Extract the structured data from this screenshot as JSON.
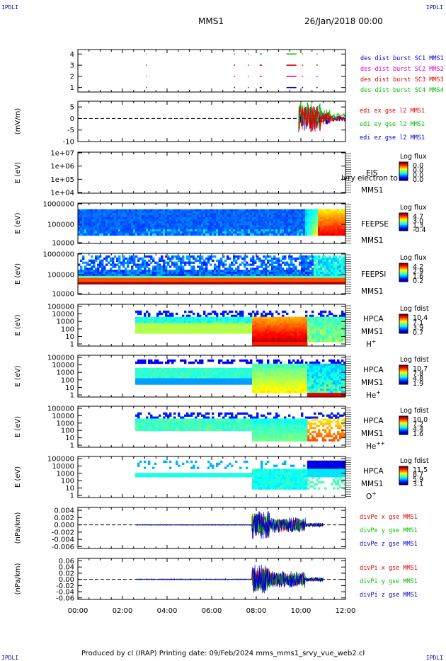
{
  "header": {
    "corner_tl": "IPDLI",
    "corner_tr": "IPDLI",
    "corner_bl": "IPDLI",
    "corner_br": "IPDLI",
    "spacecraft": "MMS1",
    "date_time": "26/Jan/2018 00:00"
  },
  "footer": {
    "text": "Produced by cl (IRAP)   Printing date: 09/Feb/2024   mms_mms1_srvy_vue_web2.cl"
  },
  "colors": {
    "c1": "#0000c8",
    "c2": "#e000e0",
    "c3": "#e00000",
    "c4": "#00c000",
    "ex": "#e00000",
    "ey": "#00c000",
    "ez": "#0000c8"
  },
  "chart_data": {
    "x_ticks": [
      "00:00",
      "02:00",
      "04:00",
      "06:00",
      "08:00",
      "10:00",
      "12:00"
    ],
    "x_range_hours": [
      0,
      12
    ],
    "panels": [
      {
        "id": "burst",
        "type": "scatter",
        "y_ticks": [
          "1",
          "2",
          "3",
          "4"
        ],
        "ylim": [
          0.6,
          4.4
        ],
        "legend": [
          {
            "text": "des dist burst SC1 MMS1",
            "color": "#0000c8"
          },
          {
            "text": "des dist burst SC2 MMS2",
            "color": "#e000e0"
          },
          {
            "text": "des dist burst SC3 MMS3",
            "color": "#e00000"
          },
          {
            "text": "des dist burst SC4 MMS4",
            "color": "#00c000"
          }
        ],
        "burst_intervals_hours": [
          [
            3.07,
            3.1
          ],
          [
            7.0,
            7.05
          ],
          [
            7.62,
            7.66
          ],
          [
            8.15,
            8.25
          ],
          [
            9.35,
            9.8
          ],
          [
            10.05,
            10.1
          ],
          [
            10.7,
            10.75
          ]
        ]
      },
      {
        "id": "edi",
        "type": "line",
        "ylabel": "(mV/m)",
        "y_ticks": [
          "5",
          "0",
          "-5",
          "-10"
        ],
        "ylim": [
          -10,
          7.5
        ],
        "legend": [
          {
            "text": "edi ex gse l2 MMS1",
            "color": "#e00000"
          },
          {
            "text": "edi ey gse l2 MMS1",
            "color": "#00c000"
          },
          {
            "text": "edi ez gse l2 MMS1",
            "color": "#0000c8"
          }
        ],
        "data_start_hours": 9.9
      },
      {
        "id": "eis",
        "type": "heatmap",
        "ylabel": "E (eV)",
        "y_ticks": [
          "1e+07",
          "1e+06",
          "1e+05",
          "1e+04"
        ],
        "labels": [
          "EIS",
          "MMS1"
        ],
        "overlay": "lvry electron to",
        "cb_title": "Log flux",
        "cb_ticks": [
          "0.0",
          "0.0",
          "0.0",
          "0.0"
        ]
      },
      {
        "id": "feepse",
        "type": "heatmap",
        "ylabel": "E (eV)",
        "y_ticks": [
          "1000000",
          "100000",
          "10000"
        ],
        "labels": [
          "FEEPSE",
          "MMS1"
        ],
        "cb_title": "Log flux",
        "cb_ticks": [
          "4.7",
          "3.0",
          "1.3",
          "-0.4"
        ]
      },
      {
        "id": "feepsi",
        "type": "heatmap",
        "ylabel": "E (eV)",
        "y_ticks": [
          "1000000",
          "100000",
          "10000"
        ],
        "labels": [
          "FEEPSI",
          "MMS1"
        ],
        "cb_title": "Log flux",
        "cb_ticks": [
          "4.2",
          "2.9",
          "1.6",
          "0.2"
        ]
      },
      {
        "id": "hpca_h",
        "type": "heatmap",
        "ylabel": "E (eV)",
        "y_ticks": [
          "100000",
          "10000",
          "1000",
          "100",
          "10",
          "1"
        ],
        "labels": [
          "HPCA",
          "MMS1"
        ],
        "species": "H",
        "species_sup": "+",
        "cb_title": "Log fdist",
        "cb_ticks": [
          "10.4",
          "7.1",
          "3.9",
          "0.7"
        ]
      },
      {
        "id": "hpca_he",
        "type": "heatmap",
        "ylabel": "E (eV)",
        "y_ticks": [
          "100000",
          "10000",
          "1000",
          "100",
          "10",
          "1"
        ],
        "labels": [
          "HPCA",
          "MMS1"
        ],
        "species": "He",
        "species_sup": "+",
        "cb_title": "Log fdist",
        "cb_ticks": [
          "10.7",
          "7.8",
          "4.8",
          "1.9"
        ]
      },
      {
        "id": "hpca_hepp",
        "type": "heatmap",
        "ylabel": "E (eV)",
        "y_ticks": [
          "100000",
          "10000",
          "1000",
          "100",
          "10",
          "1"
        ],
        "labels": [
          "HPCA",
          "MMS1"
        ],
        "species": "He",
        "species_sup": "++",
        "cb_title": "Log fdist",
        "cb_ticks": [
          "10.0",
          "7.2",
          "4.4",
          "1.6"
        ]
      },
      {
        "id": "hpca_o",
        "type": "heatmap",
        "ylabel": "E (eV)",
        "y_ticks": [
          "100000",
          "10000",
          "1000",
          "100",
          "10",
          "1"
        ],
        "labels": [
          "HPCA",
          "MMS1"
        ],
        "species": "O",
        "species_sup": "+",
        "cb_title": "Log fdist",
        "cb_ticks": [
          "11.5",
          "8.7",
          "5.9",
          "3.1"
        ]
      },
      {
        "id": "divpe",
        "type": "line",
        "ylabel": "(nPa/km)",
        "y_ticks": [
          "0.004",
          "0.002",
          "0.000",
          "-0.002",
          "-0.004",
          "-0.006"
        ],
        "ylim": [
          -0.0065,
          0.0048
        ],
        "legend": [
          {
            "text": "divPe x gse MMS1",
            "color": "#e00000"
          },
          {
            "text": "divPe y gse MMS1",
            "color": "#00c000"
          },
          {
            "text": "divPe z gse MMS1",
            "color": "#0000c8"
          }
        ]
      },
      {
        "id": "divpi",
        "type": "line",
        "ylabel": "(nPa/km)",
        "y_ticks": [
          "0.06",
          "0.04",
          "0.02",
          "0.00",
          "-0.02",
          "-0.04",
          "-0.06"
        ],
        "ylim": [
          -0.065,
          0.068
        ],
        "legend": [
          {
            "text": "divPi x gse MMS1",
            "color": "#e00000"
          },
          {
            "text": "divPi y gse MMS1",
            "color": "#00c000"
          },
          {
            "text": "divPi z gse MMS1",
            "color": "#0000c8"
          }
        ]
      }
    ]
  }
}
